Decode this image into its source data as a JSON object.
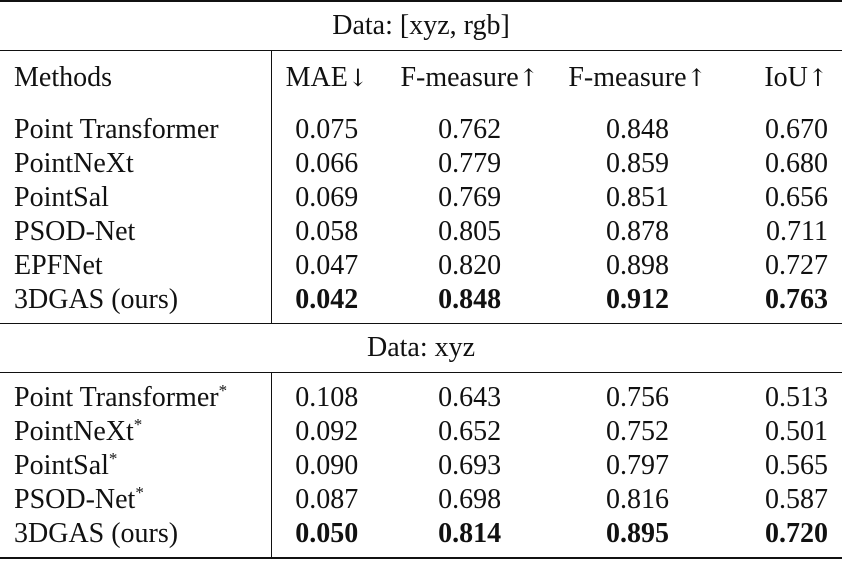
{
  "table": {
    "headers": {
      "methods": "Methods",
      "mae": "MAE",
      "mae_arrow": "↓",
      "fmeasure1": "F-measure",
      "fmeasure1_arrow": "↑",
      "fmeasure2": "F-measure",
      "fmeasure2_arrow": "↑",
      "iou": "IoU",
      "iou_arrow": "↑"
    },
    "sections": [
      {
        "title": "Data: [xyz, rgb]",
        "rows": [
          {
            "method": "Point Transformer",
            "mark": "",
            "mae": "0.075",
            "f1": "0.762",
            "f2": "0.848",
            "iou": "0.670"
          },
          {
            "method": "PointNeXt",
            "mark": "",
            "mae": "0.066",
            "f1": "0.779",
            "f2": "0.859",
            "iou": "0.680"
          },
          {
            "method": "PointSal",
            "mark": "",
            "mae": "0.069",
            "f1": "0.769",
            "f2": "0.851",
            "iou": "0.656"
          },
          {
            "method": "PSOD-Net",
            "mark": "",
            "mae": "0.058",
            "f1": "0.805",
            "f2": "0.878",
            "iou": "0.711"
          },
          {
            "method": "EPFNet",
            "mark": "",
            "mae": "0.047",
            "f1": "0.820",
            "f2": "0.898",
            "iou": "0.727"
          },
          {
            "method": "3DGAS (ours)",
            "mark": "",
            "mae": "0.042",
            "f1": "0.848",
            "f2": "0.912",
            "iou": "0.763"
          }
        ]
      },
      {
        "title": "Data: xyz",
        "rows": [
          {
            "method": "Point Transformer",
            "mark": "*",
            "mae": "0.108",
            "f1": "0.643",
            "f2": "0.756",
            "iou": "0.513"
          },
          {
            "method": "PointNeXt",
            "mark": "*",
            "mae": "0.092",
            "f1": "0.652",
            "f2": "0.752",
            "iou": "0.501"
          },
          {
            "method": "PointSal",
            "mark": "*",
            "mae": "0.090",
            "f1": "0.693",
            "f2": "0.797",
            "iou": "0.565"
          },
          {
            "method": "PSOD-Net",
            "mark": "*",
            "mae": "0.087",
            "f1": "0.698",
            "f2": "0.816",
            "iou": "0.587"
          },
          {
            "method": "3DGAS (ours)",
            "mark": "",
            "mae": "0.050",
            "f1": "0.814",
            "f2": "0.895",
            "iou": "0.720"
          }
        ]
      }
    ]
  }
}
